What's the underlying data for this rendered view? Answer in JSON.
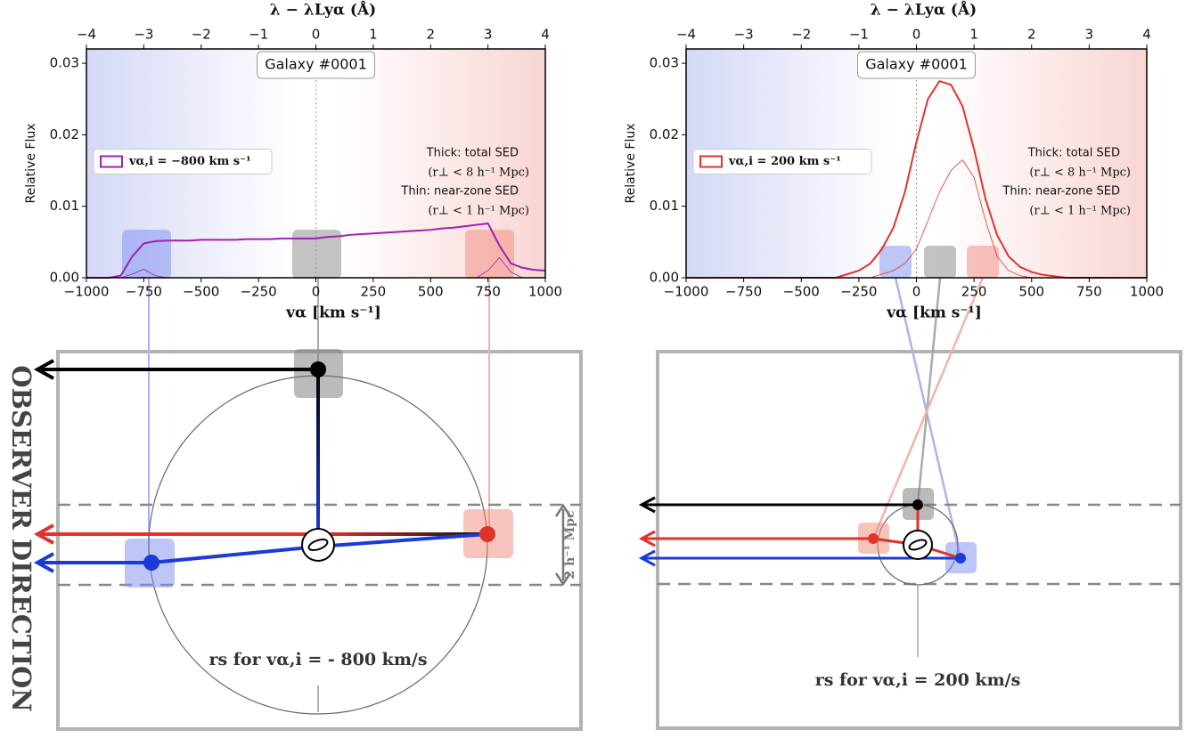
{
  "chart_data": [
    {
      "type": "line",
      "top_xlabel": "λ − λLyα (Å)",
      "xlabel": "vα [km s⁻¹]",
      "ylabel": "Relative Flux",
      "label_box": "Galaxy #0001",
      "annotations": [
        "Thick: total SED",
        "(r⊥ < 8 h⁻¹ Mpc)",
        "Thin: near-zone SED",
        "(r⊥ < 1 h⁻¹ Mpc)"
      ],
      "legend": "center left",
      "x": [
        -1000,
        -950,
        -900,
        -850,
        -800,
        -750,
        -700,
        -650,
        -600,
        -550,
        -500,
        -450,
        -400,
        -350,
        -300,
        -250,
        -200,
        -150,
        -100,
        -50,
        0,
        50,
        100,
        150,
        200,
        250,
        300,
        350,
        400,
        450,
        500,
        550,
        600,
        650,
        700,
        750,
        800,
        850,
        900,
        950,
        1000
      ],
      "series": [
        {
          "name": "vα,i = −800 km s⁻¹",
          "color": "#a020b0",
          "width": 2,
          "values": [
            0,
            0,
            0,
            0.0003,
            0.003,
            0.0048,
            0.0051,
            0.0052,
            0.0052,
            0.0052,
            0.0053,
            0.0053,
            0.0053,
            0.0053,
            0.0054,
            0.0054,
            0.0054,
            0.0055,
            0.0055,
            0.0055,
            0.0055,
            0.0057,
            0.0058,
            0.006,
            0.0061,
            0.0062,
            0.0063,
            0.0064,
            0.0065,
            0.0066,
            0.0067,
            0.0069,
            0.007,
            0.0072,
            0.0074,
            0.0076,
            0.0045,
            0.002,
            0.0014,
            0.0011,
            0.001
          ]
        },
        {
          "color": "#a020b0",
          "width": 0.8,
          "values": [
            0,
            0,
            0,
            0,
            0.0005,
            0.0012,
            0.0003,
            0,
            0,
            0,
            0,
            0,
            0,
            0,
            0,
            0,
            0,
            0,
            0,
            0,
            0,
            0,
            0,
            0,
            0,
            0,
            0,
            0,
            0,
            0,
            0,
            0,
            0,
            0,
            0,
            0.001,
            0.0028,
            0.0008,
            0,
            0,
            0
          ]
        }
      ],
      "xlim": [
        -1000,
        1000
      ],
      "xticks": [
        {
          "value": -1000,
          "label": "−1000"
        },
        {
          "value": -750,
          "label": "−750"
        },
        {
          "value": -500,
          "label": "−500"
        },
        {
          "value": -250,
          "label": "−250"
        },
        0,
        250,
        500,
        750,
        1000
      ],
      "top_xlim": [
        -4,
        4
      ],
      "top_xticks": [
        {
          "value": -4,
          "label": "−4"
        },
        {
          "value": -3,
          "label": "−3"
        },
        {
          "value": -2,
          "label": "−2"
        },
        {
          "value": -1,
          "label": "−1"
        },
        0,
        1,
        2,
        3,
        4
      ],
      "ylim": [
        0,
        0.032
      ],
      "yticks": [
        {
          "value": 0,
          "label": "0.00"
        },
        0.01,
        0.02,
        0.03
      ]
    },
    {
      "type": "line",
      "top_xlabel": "λ − λLyα (Å)",
      "xlabel": "vα [km s⁻¹]",
      "ylabel": "Relative Flux",
      "label_box": "Galaxy #0001",
      "annotations": [
        "Thick: total SED",
        "(r⊥ < 8 h⁻¹ Mpc)",
        "Thin: near-zone SED",
        "(r⊥ < 1 h⁻¹ Mpc)"
      ],
      "legend": "center left",
      "x": [
        -1000,
        -950,
        -900,
        -850,
        -800,
        -750,
        -700,
        -650,
        -600,
        -550,
        -500,
        -450,
        -400,
        -350,
        -300,
        -250,
        -200,
        -150,
        -100,
        -50,
        0,
        50,
        100,
        150,
        200,
        250,
        300,
        350,
        400,
        450,
        500,
        550,
        600,
        650,
        700,
        750,
        800,
        850,
        900,
        950,
        1000
      ],
      "series": [
        {
          "name": "vα,i = 200 km s⁻¹",
          "color": "#e0332a",
          "width": 2,
          "values": [
            0,
            0,
            0,
            0,
            0,
            0,
            0,
            0,
            0,
            0,
            0,
            0,
            0,
            0,
            0.0005,
            0.001,
            0.002,
            0.004,
            0.007,
            0.012,
            0.019,
            0.025,
            0.0275,
            0.027,
            0.024,
            0.018,
            0.011,
            0.006,
            0.003,
            0.0015,
            0.0008,
            0.0004,
            0.0002,
            0,
            0,
            0,
            0,
            0,
            0,
            0,
            0
          ]
        },
        {
          "color": "#e0332a",
          "width": 0.8,
          "values": [
            0,
            0,
            0,
            0,
            0,
            0,
            0,
            0,
            0,
            0,
            0,
            0,
            0,
            0,
            0,
            0,
            0,
            0.0005,
            0.001,
            0.002,
            0.004,
            0.008,
            0.012,
            0.015,
            0.0165,
            0.014,
            0.008,
            0.003,
            0.001,
            0.0003,
            0,
            0,
            0,
            0,
            0,
            0,
            0,
            0,
            0,
            0,
            0
          ]
        }
      ],
      "xlim": [
        -1000,
        1000
      ],
      "xticks": [
        {
          "value": -1000,
          "label": "−1000"
        },
        {
          "value": -750,
          "label": "−750"
        },
        {
          "value": -500,
          "label": "−500"
        },
        {
          "value": -250,
          "label": "−250"
        },
        0,
        250,
        500,
        750,
        1000
      ],
      "top_xlim": [
        -4,
        4
      ],
      "top_xticks": [
        {
          "value": -4,
          "label": "−4"
        },
        {
          "value": -3,
          "label": "−3"
        },
        {
          "value": -2,
          "label": "−2"
        },
        {
          "value": -1,
          "label": "−1"
        },
        0,
        1,
        2,
        3,
        4
      ],
      "ylim": [
        0,
        0.032
      ],
      "yticks": [
        {
          "value": 0,
          "label": "0.00"
        },
        0.01,
        0.02,
        0.03
      ]
    }
  ],
  "diagram": {
    "observer_label": "OBSERVER DIRECTION",
    "scale_label": "2 h⁻¹ Mpc",
    "captions": [
      "rs for vα,i = - 800 km/s",
      "rs for vα,i = 200 km/s"
    ]
  }
}
